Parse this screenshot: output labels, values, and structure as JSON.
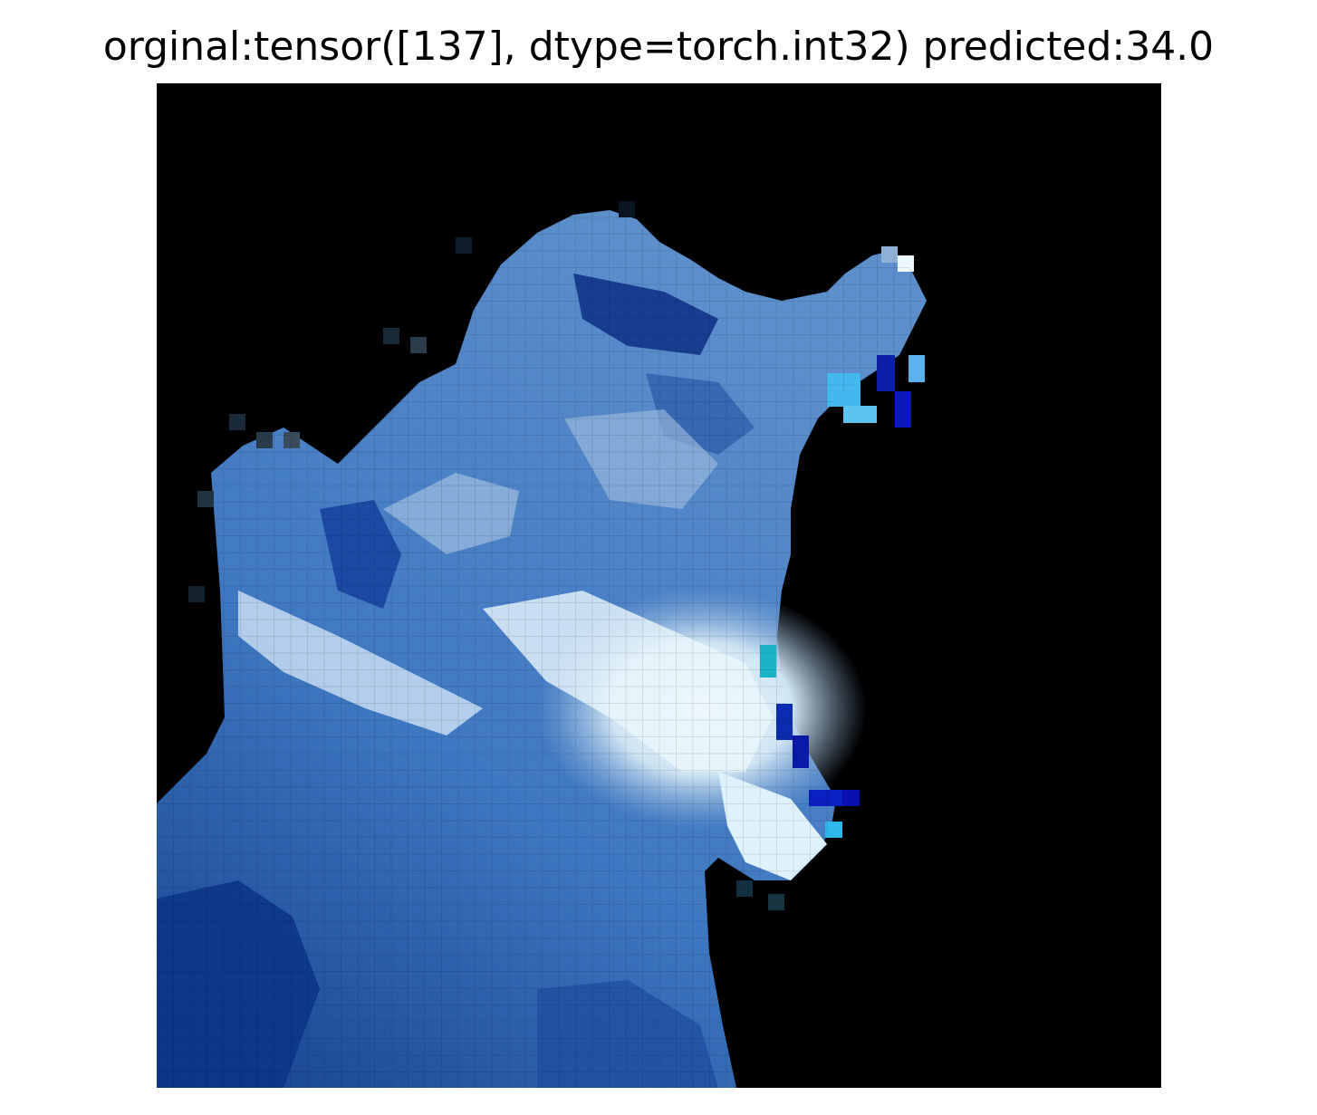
{
  "figure": {
    "title": "orginal:tensor([137], dtype=torch.int32) predicted:34.0"
  },
  "image": {
    "subject": "pixelated low-resolution photo, blue-tinted figure on black background",
    "background_color": "#000000",
    "palette": [
      "#0a2a6e",
      "#1f4fa8",
      "#3f7bc8",
      "#7fa9d8",
      "#cfe6f5",
      "#f2fbff",
      "#35b7e8",
      "#0a1aa8"
    ]
  }
}
